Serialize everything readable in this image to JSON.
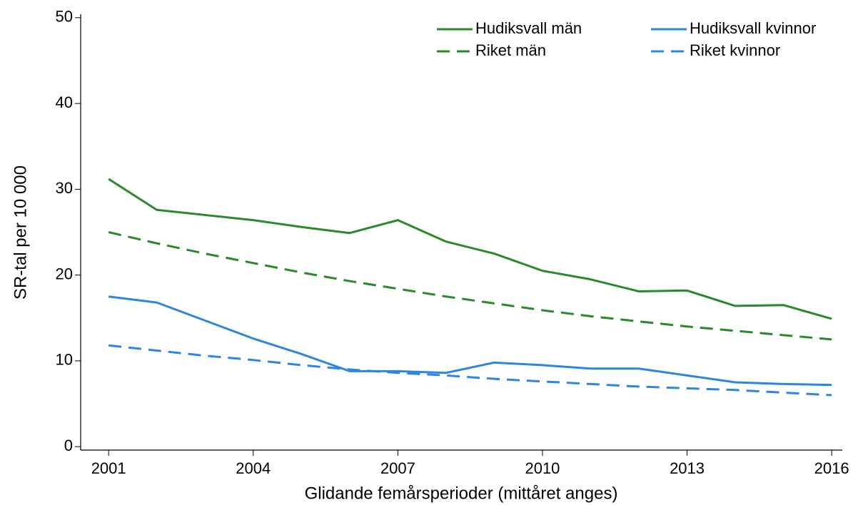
{
  "chart_data": {
    "type": "line",
    "xlabel": "Glidande femårsperioder (mittåret anges)",
    "ylabel": "SR-tal per 10 000",
    "x": [
      2001,
      2002,
      2003,
      2004,
      2005,
      2006,
      2007,
      2008,
      2009,
      2010,
      2011,
      2012,
      2013,
      2014,
      2015,
      2016
    ],
    "series": [
      {
        "name": "Hudiksvall män",
        "color": "#2a8a2a",
        "linestyle": "solid",
        "values": [
          31.2,
          27.6,
          27.0,
          26.4,
          25.6,
          24.9,
          26.4,
          23.9,
          22.5,
          20.5,
          19.5,
          18.1,
          18.2,
          16.4,
          16.5,
          14.9
        ]
      },
      {
        "name": "Hudiksvall kvinnor",
        "color": "#2e86de",
        "linestyle": "solid",
        "values": [
          17.5,
          16.8,
          14.7,
          12.6,
          10.8,
          8.8,
          8.8,
          8.6,
          9.8,
          9.5,
          9.1,
          9.1,
          8.3,
          7.5,
          7.3,
          7.2
        ]
      },
      {
        "name": "Riket män",
        "color": "#2a8a2a",
        "linestyle": "dashed",
        "values": [
          25.0,
          23.7,
          22.5,
          21.4,
          20.3,
          19.3,
          18.4,
          17.5,
          16.7,
          15.9,
          15.2,
          14.6,
          14.0,
          13.5,
          13.0,
          12.5
        ]
      },
      {
        "name": "Riket kvinnor",
        "color": "#2e86de",
        "linestyle": "dashed",
        "values": [
          11.8,
          11.2,
          10.6,
          10.1,
          9.5,
          9.0,
          8.6,
          8.3,
          7.9,
          7.6,
          7.3,
          7.0,
          6.8,
          6.6,
          6.3,
          6.0
        ]
      }
    ],
    "xlim": [
      2000.42,
      2016.22
    ],
    "xticks": [
      2001,
      2004,
      2007,
      2010,
      2013,
      2016
    ],
    "ylim": [
      -0.4,
      50.4
    ],
    "yticks": [
      0,
      10,
      20,
      30,
      40,
      50
    ],
    "legend": "upper right",
    "grid": false
  }
}
